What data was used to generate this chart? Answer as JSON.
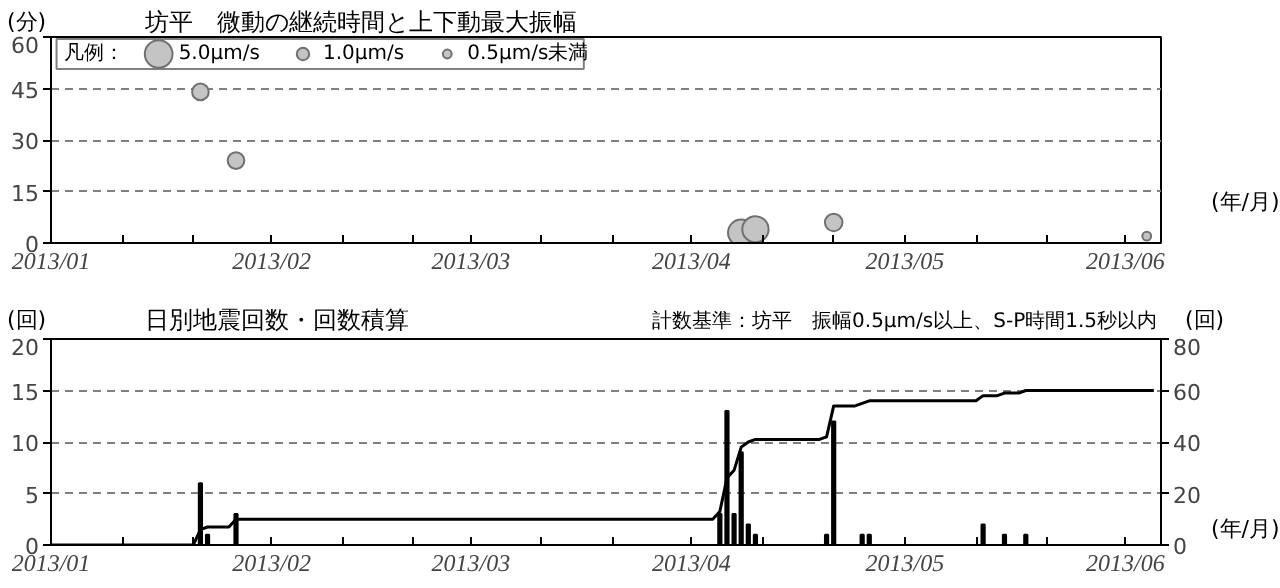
{
  "chart_data": [
    {
      "type": "bubble",
      "title": "坊平　微動の継続時間と上下動最大振幅",
      "ylabel": "(分)",
      "xlabel": "(年/月)",
      "legend_title": "凡例：",
      "size_legend": [
        {
          "value": 5.0,
          "label": "5.0μm/s"
        },
        {
          "value": 1.0,
          "label": "1.0μm/s"
        },
        {
          "value": 0.5,
          "label": "0.5μm/s未満"
        }
      ],
      "xlim": [
        "2013-01-01",
        "2013-06-06"
      ],
      "xticks": [
        {
          "value": "2013-01-01",
          "label": "2013/01"
        },
        {
          "value": "2013-01-11",
          "label": null
        },
        {
          "value": "2013-01-21",
          "label": null
        },
        {
          "value": "2013-02-01",
          "label": "2013/02"
        },
        {
          "value": "2013-02-11",
          "label": null
        },
        {
          "value": "2013-02-21",
          "label": null
        },
        {
          "value": "2013-03-01",
          "label": "2013/03"
        },
        {
          "value": "2013-03-11",
          "label": null
        },
        {
          "value": "2013-03-21",
          "label": null
        },
        {
          "value": "2013-04-01",
          "label": "2013/04"
        },
        {
          "value": "2013-04-11",
          "label": null
        },
        {
          "value": "2013-04-21",
          "label": null
        },
        {
          "value": "2013-05-01",
          "label": "2013/05"
        },
        {
          "value": "2013-05-11",
          "label": null
        },
        {
          "value": "2013-05-21",
          "label": null
        },
        {
          "value": "2013-06-01",
          "label": "2013/06"
        }
      ],
      "ylim": [
        0,
        60
      ],
      "yticks": [
        0,
        15,
        30,
        45,
        60
      ],
      "grid": "y",
      "series": [
        {
          "color": "#c4c4c4",
          "x": [
            "2013-01-22",
            "2013-01-27",
            "2013-04-08",
            "2013-04-10",
            "2013-04-21",
            "2013-06-04"
          ],
          "values": [
            44,
            24,
            3,
            4,
            6,
            2
          ],
          "sizes": [
            1.8,
            1.8,
            4.5,
            4.5,
            2.0,
            0.5
          ]
        }
      ]
    },
    {
      "type": "bar",
      "title": "日別地震回数・回数積算",
      "ylabel": "(回)",
      "y2label": "(回)",
      "xlabel": "(年/月)",
      "annotations": [
        "計数基準：坊平　振幅0.5μm/s以上、S-P時間1.5秒以内"
      ],
      "xlim": [
        "2013-01-01",
        "2013-06-06"
      ],
      "xticks": [
        {
          "value": "2013-01-01",
          "label": "2013/01"
        },
        {
          "value": "2013-01-11",
          "label": null
        },
        {
          "value": "2013-01-21",
          "label": null
        },
        {
          "value": "2013-02-01",
          "label": "2013/02"
        },
        {
          "value": "2013-02-11",
          "label": null
        },
        {
          "value": "2013-02-21",
          "label": null
        },
        {
          "value": "2013-03-01",
          "label": "2013/03"
        },
        {
          "value": "2013-03-11",
          "label": null
        },
        {
          "value": "2013-03-21",
          "label": null
        },
        {
          "value": "2013-04-01",
          "label": "2013/04"
        },
        {
          "value": "2013-04-11",
          "label": null
        },
        {
          "value": "2013-04-21",
          "label": null
        },
        {
          "value": "2013-05-01",
          "label": "2013/05"
        },
        {
          "value": "2013-05-11",
          "label": null
        },
        {
          "value": "2013-05-21",
          "label": null
        },
        {
          "value": "2013-06-01",
          "label": "2013/06"
        }
      ],
      "ylim": [
        0,
        20
      ],
      "yticks": [
        0,
        5,
        10,
        15,
        20
      ],
      "y2lim": [
        0,
        80
      ],
      "y2ticks": [
        0,
        20,
        40,
        60,
        80
      ],
      "grid": "y",
      "series": [
        {
          "color": "#000000",
          "x": [
            "2013-01-22",
            "2013-01-23",
            "2013-01-27",
            "2013-04-05",
            "2013-04-06",
            "2013-04-07",
            "2013-04-08",
            "2013-04-09",
            "2013-04-10",
            "2013-04-20",
            "2013-04-21",
            "2013-04-25",
            "2013-04-26",
            "2013-05-12",
            "2013-05-15",
            "2013-05-18"
          ],
          "values": [
            6,
            1,
            3,
            3,
            13,
            3,
            9,
            2,
            1,
            1,
            12,
            1,
            1,
            2,
            1,
            1
          ]
        },
        {
          "type": "line",
          "axis": "y2",
          "color": "#000000",
          "x": [
            "2013-01-01",
            "2013-01-21",
            "2013-01-22",
            "2013-01-23",
            "2013-01-26",
            "2013-01-27",
            "2013-04-04",
            "2013-04-05",
            "2013-04-06",
            "2013-04-07",
            "2013-04-08",
            "2013-04-09",
            "2013-04-10",
            "2013-04-19",
            "2013-04-20",
            "2013-04-21",
            "2013-04-24",
            "2013-04-25",
            "2013-04-26",
            "2013-05-11",
            "2013-05-12",
            "2013-05-14",
            "2013-05-15",
            "2013-05-17",
            "2013-05-18",
            "2013-06-05"
          ],
          "values": [
            0,
            0,
            6,
            7,
            7,
            10,
            10,
            13,
            26,
            29,
            38,
            40,
            41,
            41,
            42,
            54,
            54,
            55,
            56,
            56,
            58,
            58,
            59,
            59,
            60,
            60
          ]
        }
      ]
    }
  ]
}
